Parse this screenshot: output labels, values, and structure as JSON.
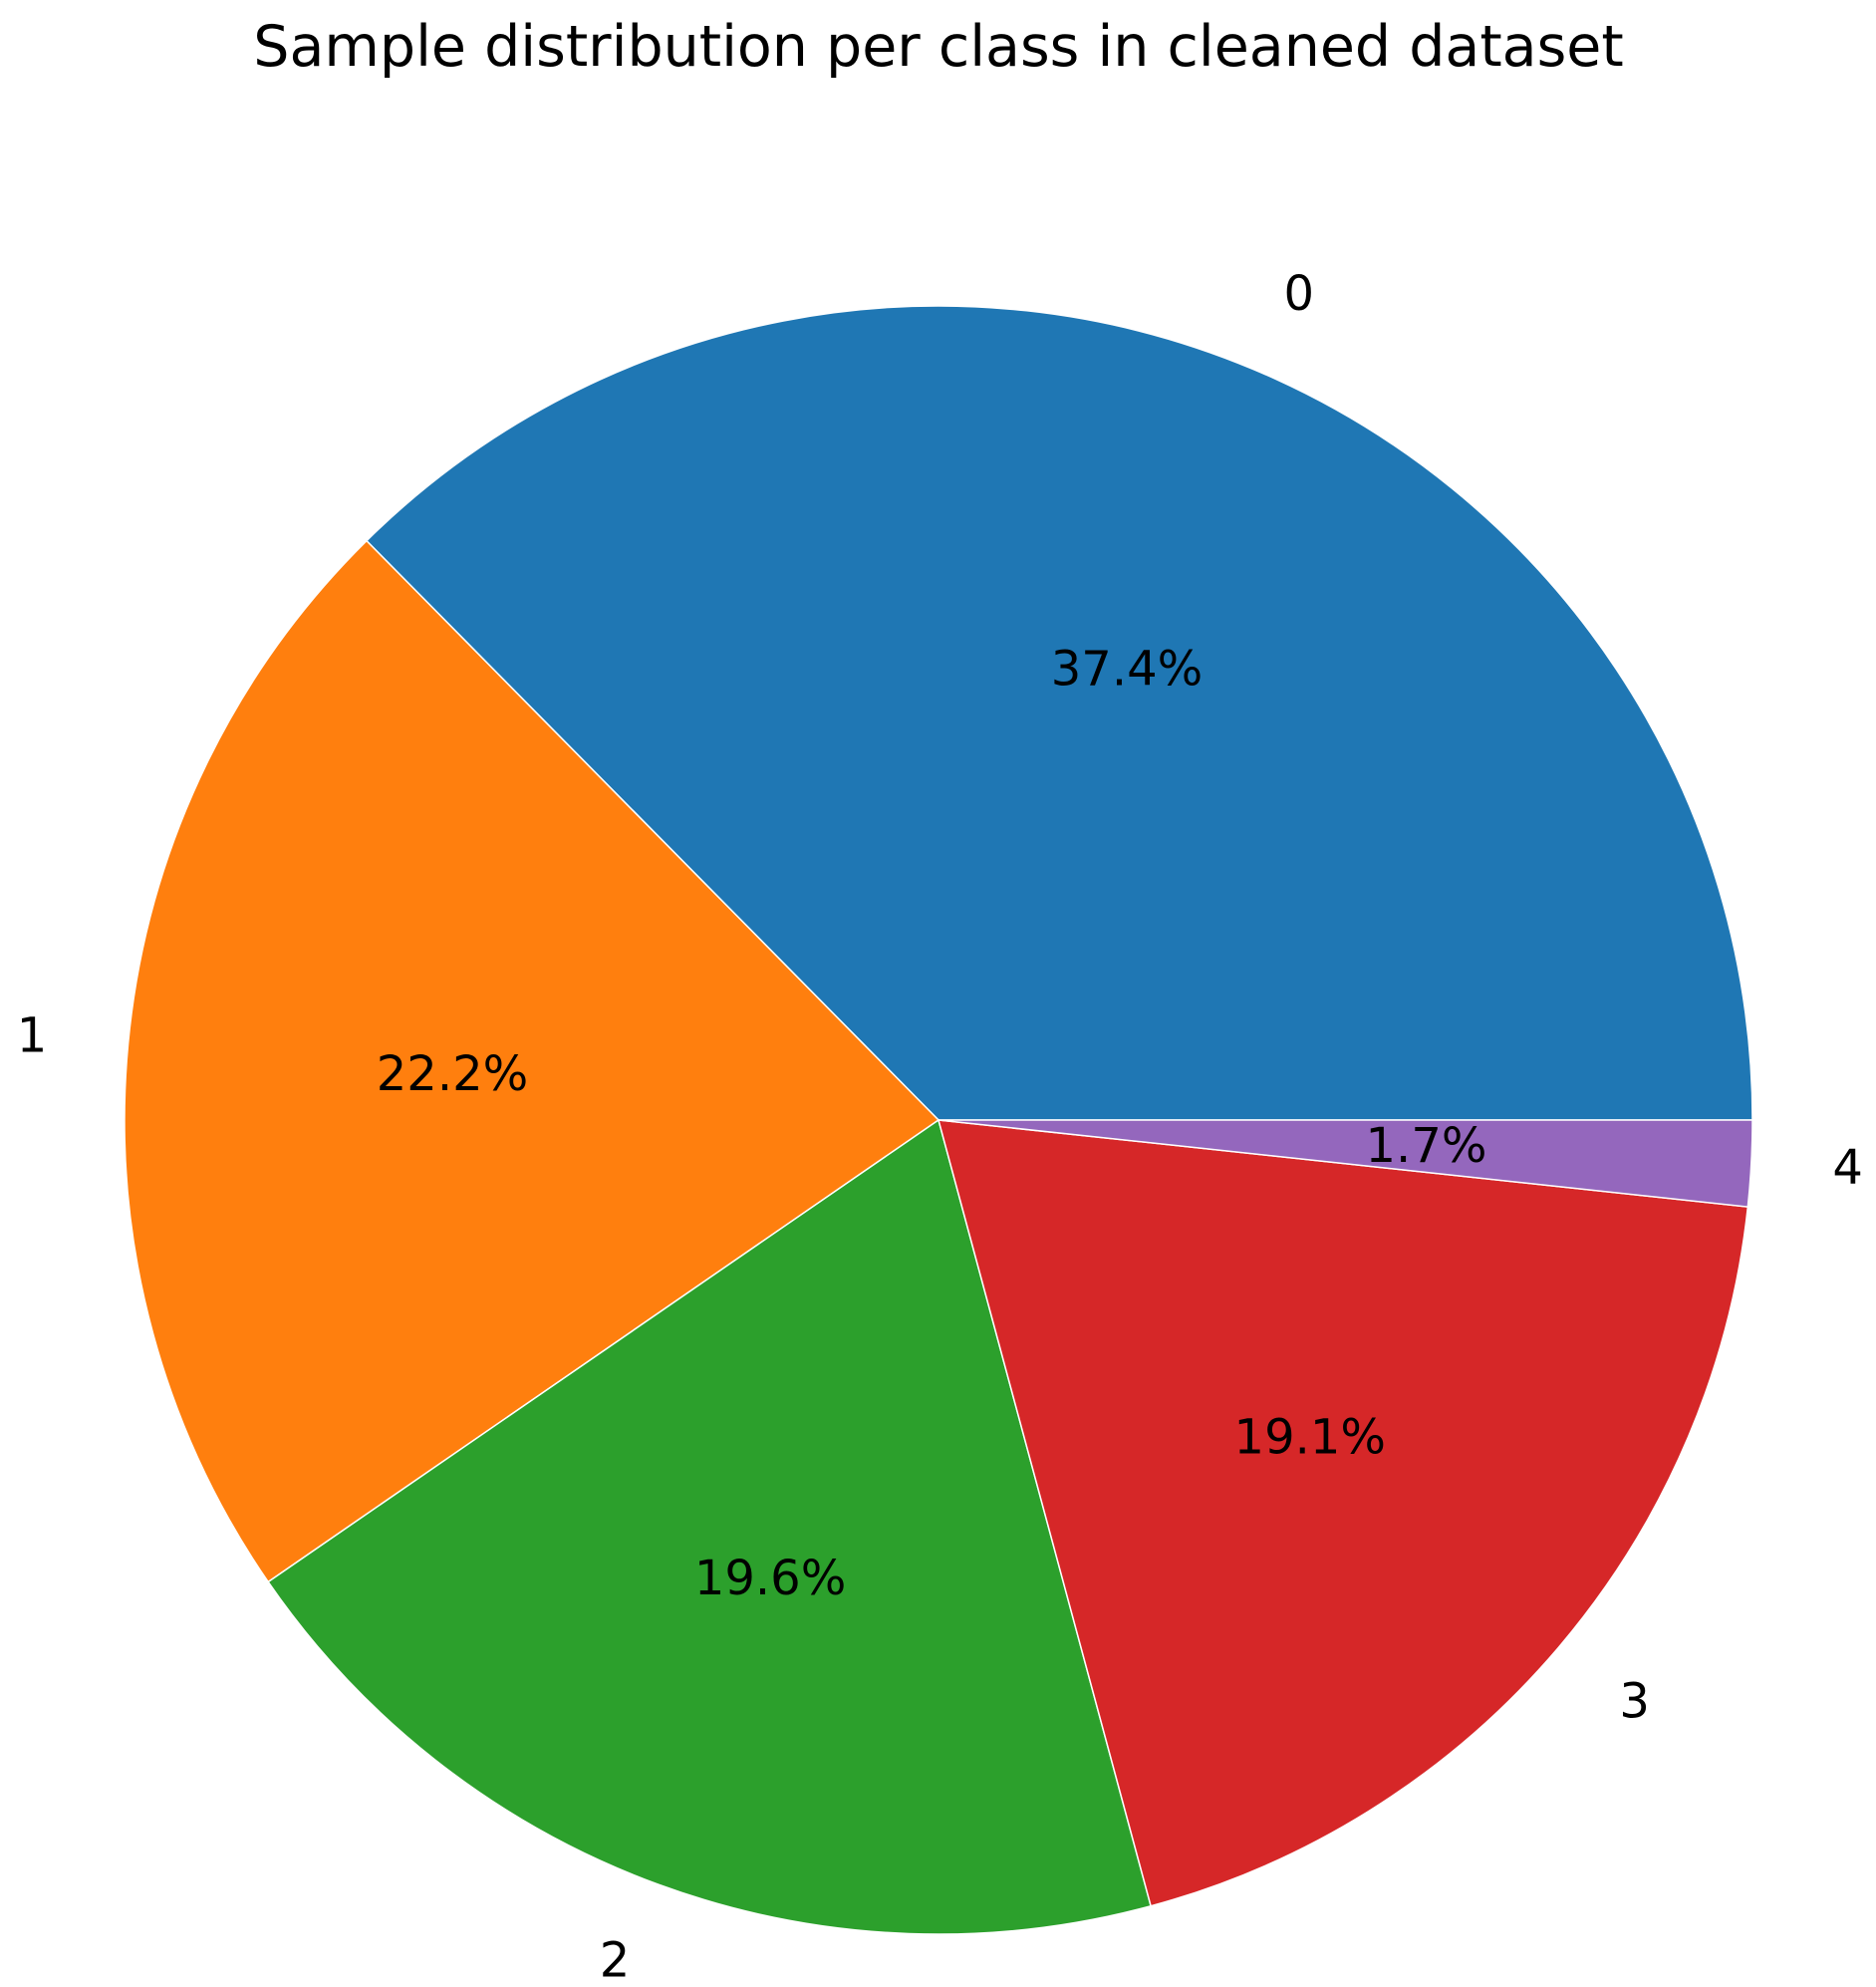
{
  "chart_data": {
    "type": "pie",
    "title": "Sample distribution per class in cleaned dataset",
    "start_angle_deg": 0,
    "direction": "counterclockwise",
    "slices": [
      {
        "label": "0",
        "value": 37.4,
        "pct_label": "37.4%",
        "color": "#1f77b4"
      },
      {
        "label": "1",
        "value": 22.2,
        "pct_label": "22.2%",
        "color": "#ff7f0e"
      },
      {
        "label": "2",
        "value": 19.6,
        "pct_label": "19.6%",
        "color": "#2ca02c"
      },
      {
        "label": "3",
        "value": 19.1,
        "pct_label": "19.1%",
        "color": "#d62728"
      },
      {
        "label": "4",
        "value": 1.7,
        "pct_label": "1.7%",
        "color": "#9467bd"
      }
    ]
  }
}
